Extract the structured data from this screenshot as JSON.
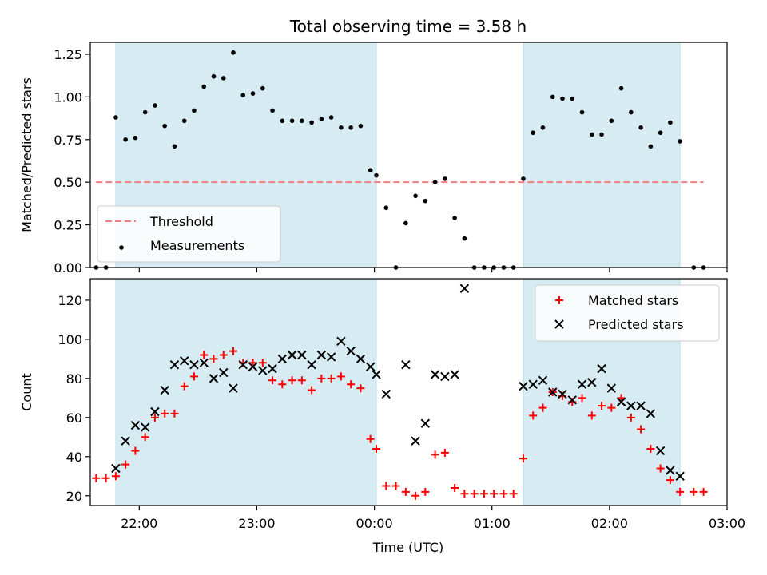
{
  "chart_data": {
    "title": "Total observing time = 3.58 h",
    "xlabel": "Time (UTC)",
    "x_ticks": [
      "22:00",
      "23:00",
      "00:00",
      "01:00",
      "02:00",
      "03:00"
    ],
    "x_range": [
      "21:35",
      "03:00"
    ],
    "shaded_intervals": [
      [
        "21:48",
        "00:01"
      ],
      [
        "01:16",
        "02:36"
      ]
    ],
    "shade_color": "#add8e6",
    "panels": [
      {
        "type": "scatter",
        "ylabel": "Matched/Predicted stars",
        "ylim": [
          0,
          1.32
        ],
        "y_ticks": [
          "0.00",
          "0.25",
          "0.50",
          "0.75",
          "1.00",
          "1.25"
        ],
        "legend_position": "lower-left",
        "threshold": {
          "name": "Threshold",
          "value": 0.5,
          "x_start": "21:38",
          "x_end": "02:48",
          "color": "#f08080"
        },
        "series": [
          {
            "name": "Measurements",
            "color": "#000000",
            "points": [
              [
                "21:38",
                0.0
              ],
              [
                "21:43",
                0.0
              ],
              [
                "21:48",
                0.88
              ],
              [
                "21:53",
                0.75
              ],
              [
                "21:58",
                0.76
              ],
              [
                "22:03",
                0.91
              ],
              [
                "22:08",
                0.95
              ],
              [
                "22:13",
                0.83
              ],
              [
                "22:18",
                0.71
              ],
              [
                "22:23",
                0.86
              ],
              [
                "22:28",
                0.92
              ],
              [
                "22:33",
                1.06
              ],
              [
                "22:38",
                1.12
              ],
              [
                "22:43",
                1.11
              ],
              [
                "22:48",
                1.26
              ],
              [
                "22:53",
                1.01
              ],
              [
                "22:58",
                1.02
              ],
              [
                "23:03",
                1.05
              ],
              [
                "23:08",
                0.92
              ],
              [
                "23:13",
                0.86
              ],
              [
                "23:18",
                0.86
              ],
              [
                "23:23",
                0.86
              ],
              [
                "23:28",
                0.85
              ],
              [
                "23:33",
                0.87
              ],
              [
                "23:38",
                0.88
              ],
              [
                "23:43",
                0.82
              ],
              [
                "23:48",
                0.82
              ],
              [
                "23:53",
                0.83
              ],
              [
                "23:58",
                0.57
              ],
              [
                "00:01",
                0.54
              ],
              [
                "00:06",
                0.35
              ],
              [
                "00:11",
                0.0
              ],
              [
                "00:16",
                0.26
              ],
              [
                "00:21",
                0.42
              ],
              [
                "00:26",
                0.39
              ],
              [
                "00:31",
                0.5
              ],
              [
                "00:36",
                0.52
              ],
              [
                "00:41",
                0.29
              ],
              [
                "00:46",
                0.17
              ],
              [
                "00:51",
                0.0
              ],
              [
                "00:56",
                0.0
              ],
              [
                "01:01",
                0.0
              ],
              [
                "01:06",
                0.0
              ],
              [
                "01:11",
                0.0
              ],
              [
                "01:16",
                0.52
              ],
              [
                "01:21",
                0.79
              ],
              [
                "01:26",
                0.82
              ],
              [
                "01:31",
                1.0
              ],
              [
                "01:36",
                0.99
              ],
              [
                "01:41",
                0.99
              ],
              [
                "01:46",
                0.91
              ],
              [
                "01:51",
                0.78
              ],
              [
                "01:56",
                0.78
              ],
              [
                "02:01",
                0.86
              ],
              [
                "02:06",
                1.05
              ],
              [
                "02:11",
                0.91
              ],
              [
                "02:16",
                0.82
              ],
              [
                "02:21",
                0.71
              ],
              [
                "02:26",
                0.79
              ],
              [
                "02:31",
                0.85
              ],
              [
                "02:36",
                0.74
              ],
              [
                "02:43",
                0.0
              ],
              [
                "02:48",
                0.0
              ]
            ]
          }
        ]
      },
      {
        "type": "scatter",
        "ylabel": "Count",
        "ylim": [
          15,
          131
        ],
        "y_ticks": [
          "20",
          "40",
          "60",
          "80",
          "100",
          "120"
        ],
        "legend_position": "upper-right",
        "series": [
          {
            "name": "Matched stars",
            "color": "#ff0000",
            "marker": "plus",
            "points": [
              [
                "21:38",
                29
              ],
              [
                "21:43",
                29
              ],
              [
                "21:48",
                30
              ],
              [
                "21:53",
                36
              ],
              [
                "21:58",
                43
              ],
              [
                "22:03",
                50
              ],
              [
                "22:08",
                60
              ],
              [
                "22:13",
                62
              ],
              [
                "22:18",
                62
              ],
              [
                "22:23",
                76
              ],
              [
                "22:28",
                81
              ],
              [
                "22:33",
                92
              ],
              [
                "22:38",
                90
              ],
              [
                "22:43",
                92
              ],
              [
                "22:48",
                94
              ],
              [
                "22:53",
                88
              ],
              [
                "22:58",
                88
              ],
              [
                "23:03",
                88
              ],
              [
                "23:08",
                79
              ],
              [
                "23:13",
                77
              ],
              [
                "23:18",
                79
              ],
              [
                "23:23",
                79
              ],
              [
                "23:28",
                74
              ],
              [
                "23:33",
                80
              ],
              [
                "23:38",
                80
              ],
              [
                "23:43",
                81
              ],
              [
                "23:48",
                77
              ],
              [
                "23:53",
                75
              ],
              [
                "23:58",
                49
              ],
              [
                "00:01",
                44
              ],
              [
                "00:06",
                25
              ],
              [
                "00:11",
                25
              ],
              [
                "00:16",
                22
              ],
              [
                "00:21",
                20
              ],
              [
                "00:26",
                22
              ],
              [
                "00:31",
                41
              ],
              [
                "00:36",
                42
              ],
              [
                "00:41",
                24
              ],
              [
                "00:46",
                21
              ],
              [
                "00:51",
                21
              ],
              [
                "00:56",
                21
              ],
              [
                "01:01",
                21
              ],
              [
                "01:06",
                21
              ],
              [
                "01:11",
                21
              ],
              [
                "01:16",
                39
              ],
              [
                "01:21",
                61
              ],
              [
                "01:26",
                65
              ],
              [
                "01:31",
                73
              ],
              [
                "01:36",
                71
              ],
              [
                "01:41",
                68
              ],
              [
                "01:46",
                70
              ],
              [
                "01:51",
                61
              ],
              [
                "01:56",
                66
              ],
              [
                "02:01",
                65
              ],
              [
                "02:06",
                70
              ],
              [
                "02:11",
                60
              ],
              [
                "02:16",
                54
              ],
              [
                "02:21",
                44
              ],
              [
                "02:26",
                34
              ],
              [
                "02:31",
                28
              ],
              [
                "02:36",
                22
              ],
              [
                "02:43",
                22
              ],
              [
                "02:48",
                22
              ]
            ]
          },
          {
            "name": "Predicted stars",
            "color": "#000000",
            "marker": "x",
            "points": [
              [
                "21:48",
                34
              ],
              [
                "21:53",
                48
              ],
              [
                "21:58",
                56
              ],
              [
                "22:03",
                55
              ],
              [
                "22:08",
                63
              ],
              [
                "22:13",
                74
              ],
              [
                "22:18",
                87
              ],
              [
                "22:23",
                89
              ],
              [
                "22:28",
                87
              ],
              [
                "22:33",
                88
              ],
              [
                "22:38",
                80
              ],
              [
                "22:43",
                83
              ],
              [
                "22:48",
                75
              ],
              [
                "22:53",
                87
              ],
              [
                "22:58",
                86
              ],
              [
                "23:03",
                84
              ],
              [
                "23:08",
                85
              ],
              [
                "23:13",
                90
              ],
              [
                "23:18",
                92
              ],
              [
                "23:23",
                92
              ],
              [
                "23:28",
                87
              ],
              [
                "23:33",
                92
              ],
              [
                "23:38",
                91
              ],
              [
                "23:43",
                99
              ],
              [
                "23:48",
                94
              ],
              [
                "23:53",
                90
              ],
              [
                "23:58",
                86
              ],
              [
                "00:01",
                82
              ],
              [
                "00:06",
                72
              ],
              [
                "00:16",
                87
              ],
              [
                "00:21",
                48
              ],
              [
                "00:26",
                57
              ],
              [
                "00:31",
                82
              ],
              [
                "00:36",
                81
              ],
              [
                "00:41",
                82
              ],
              [
                "00:46",
                126
              ],
              [
                "01:16",
                76
              ],
              [
                "01:21",
                77
              ],
              [
                "01:26",
                79
              ],
              [
                "01:31",
                73
              ],
              [
                "01:36",
                72
              ],
              [
                "01:41",
                69
              ],
              [
                "01:46",
                77
              ],
              [
                "01:51",
                78
              ],
              [
                "01:56",
                85
              ],
              [
                "02:01",
                75
              ],
              [
                "02:06",
                68
              ],
              [
                "02:11",
                66
              ],
              [
                "02:16",
                66
              ],
              [
                "02:21",
                62
              ],
              [
                "02:26",
                43
              ],
              [
                "02:31",
                33
              ],
              [
                "02:36",
                30
              ]
            ]
          }
        ]
      }
    ]
  }
}
